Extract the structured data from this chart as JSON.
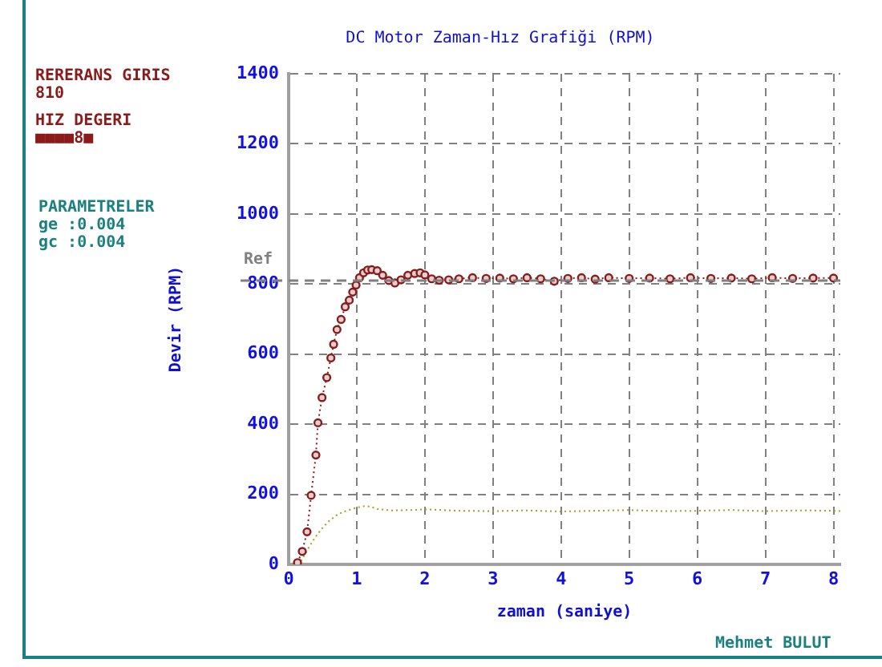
{
  "chart_data": {
    "type": "line",
    "title": "DC Motor Zaman-Hız Grafiği (RPM)",
    "xlabel": "zaman (saniye)",
    "ylabel": "Devir (RPM)",
    "xlim": [
      0,
      8.1
    ],
    "xticks": [
      0,
      1,
      2,
      3,
      4,
      5,
      6,
      7,
      8
    ],
    "ylim": [
      0,
      1400
    ],
    "yticks": [
      0,
      200,
      400,
      600,
      800,
      1000,
      1200,
      1400
    ],
    "grid": true,
    "legend": false,
    "series": [
      {
        "color": "#8b1a1a",
        "marker": "circle",
        "line_style": "dotted",
        "x": [
          0.13,
          0.2,
          0.27,
          0.33,
          0.4,
          0.43,
          0.49,
          0.56,
          0.62,
          0.66,
          0.71,
          0.77,
          0.83,
          0.89,
          0.94,
          0.99,
          1.04,
          1.1,
          1.16,
          1.22,
          1.3,
          1.38,
          1.47,
          1.56,
          1.65,
          1.75,
          1.85,
          1.93,
          2.0,
          2.1,
          2.21,
          2.35,
          2.5,
          2.7,
          2.9,
          3.1,
          3.3,
          3.5,
          3.7,
          3.9,
          4.1,
          4.3,
          4.5,
          4.7,
          5.0,
          5.3,
          5.6,
          5.9,
          6.2,
          6.5,
          6.8,
          7.1,
          7.4,
          7.7,
          8.0
        ],
        "values": [
          5,
          37,
          93,
          197,
          312,
          404,
          476,
          533,
          589,
          628,
          670,
          699,
          735,
          754,
          777,
          797,
          818,
          832,
          840,
          841,
          838,
          825,
          810,
          803,
          812,
          825,
          830,
          832,
          826,
          815,
          811,
          812,
          815,
          818,
          816,
          817,
          815,
          818,
          815,
          808,
          816,
          818,
          814,
          818,
          816,
          817,
          815,
          818,
          816,
          817,
          815,
          818,
          816,
          817,
          817
        ]
      },
      {
        "color": "#a0a020",
        "marker": "none",
        "line_style": "dotted",
        "x": [
          0.13,
          0.2,
          0.3,
          0.4,
          0.5,
          0.6,
          0.7,
          0.8,
          0.9,
          1.0,
          1.1,
          1.2,
          1.3,
          1.5,
          1.8,
          2.0,
          2.5,
          3.0,
          3.5,
          4.0,
          4.5,
          5.0,
          5.5,
          6.0,
          6.5,
          7.0,
          7.5,
          8.0,
          8.1
        ],
        "values": [
          0,
          15,
          50,
          80,
          105,
          125,
          140,
          150,
          156,
          162,
          166,
          165,
          158,
          154,
          155,
          157,
          153,
          152,
          154,
          151,
          153,
          155,
          152,
          153,
          155,
          152,
          154,
          153,
          152
        ]
      }
    ],
    "ref_lines": [
      {
        "axis": "y",
        "value": 810,
        "label": "Ref",
        "color": "#808080",
        "line_style": "dashed"
      }
    ],
    "annotations": [
      "RERERANS GIRIS",
      "810",
      "HIZ DEGERI",
      "■■■■8■",
      "PARAMETRELER",
      "ge :0.004",
      "gc :0.004",
      "Mehmet BULUT"
    ]
  }
}
